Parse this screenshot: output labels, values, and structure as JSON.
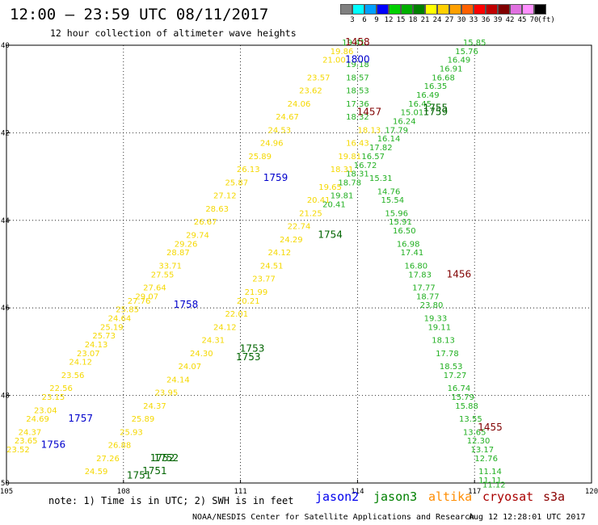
{
  "header": {
    "title": "12:00 — 23:59 UTC 08/11/2017",
    "subtitle": "12 hour collection of altimeter wave heights"
  },
  "color_scale": {
    "labels": [
      "3",
      "6",
      "9",
      "12",
      "15",
      "18",
      "21",
      "24",
      "27",
      "30",
      "33",
      "36",
      "39",
      "42",
      "45",
      "70"
    ],
    "unit": "(ft)",
    "colors": [
      "#808080",
      "#00ffff",
      "#00a0ff",
      "#0000ff",
      "#00d000",
      "#00b000",
      "#008000",
      "#ffff00",
      "#ffd000",
      "#ffa000",
      "#ff6000",
      "#ff0000",
      "#c00000",
      "#800000",
      "#e070e0",
      "#ff90ff",
      "#000000"
    ]
  },
  "axes": {
    "x_ticks": [
      "105",
      "108",
      "111",
      "114",
      "117",
      "120"
    ],
    "y_ticks": [
      "40",
      "42",
      "44",
      "46",
      "48",
      "50"
    ]
  },
  "footer": {
    "note": "note: 1) Time is in UTC; 2) SWH is in feet",
    "satellites": [
      {
        "name": "jason2",
        "color": "#0000ee"
      },
      {
        "name": "jason3",
        "color": "#008000"
      },
      {
        "name": "altika",
        "color": "#ff8c00"
      },
      {
        "name": "cryosat",
        "color": "#aa0000"
      },
      {
        "name": "s3a",
        "color": "#8b0000"
      }
    ],
    "credit": "NOAA/NESDIS Center for Satellite Applications and Research",
    "timestamp": "Aug 12 12:28:01 UTC 2017"
  },
  "map_data": {
    "x_range": [
      105,
      120
    ],
    "y_range": [
      40,
      50
    ],
    "time_labels": [
      {
        "text": "1458",
        "x": 114.0,
        "y": 40.0,
        "color": "#800000"
      },
      {
        "text": "1800",
        "x": 114.0,
        "y": 40.4,
        "color": "#0000cc"
      },
      {
        "text": "1457",
        "x": 114.3,
        "y": 41.6,
        "color": "#800000"
      },
      {
        "text": "1755",
        "x": 116.0,
        "y": 41.5,
        "color": "#006400"
      },
      {
        "text": "1759",
        "x": 116.0,
        "y": 41.6,
        "color": "#006400"
      },
      {
        "text": "1759",
        "x": 111.9,
        "y": 43.1,
        "color": "#0000cc"
      },
      {
        "text": "1754",
        "x": 113.3,
        "y": 44.4,
        "color": "#006400"
      },
      {
        "text": "1456",
        "x": 116.6,
        "y": 45.3,
        "color": "#800000"
      },
      {
        "text": "1758",
        "x": 109.6,
        "y": 46.0,
        "color": "#0000cc"
      },
      {
        "text": "1753",
        "x": 111.3,
        "y": 47.0,
        "color": "#006400"
      },
      {
        "text": "1753",
        "x": 111.2,
        "y": 47.2,
        "color": "#006400"
      },
      {
        "text": "1757",
        "x": 106.9,
        "y": 48.6,
        "color": "#0000cc"
      },
      {
        "text": "1455",
        "x": 117.4,
        "y": 48.8,
        "color": "#800000"
      },
      {
        "text": "1756",
        "x": 106.2,
        "y": 49.2,
        "color": "#0000cc"
      },
      {
        "text": "1752",
        "x": 109.0,
        "y": 49.5,
        "color": "#006400"
      },
      {
        "text": "1752",
        "x": 109.1,
        "y": 49.5,
        "color": "#006400"
      },
      {
        "text": "1751",
        "x": 108.8,
        "y": 49.8,
        "color": "#006400"
      },
      {
        "text": "1751",
        "x": 108.4,
        "y": 49.9,
        "color": "#006400"
      }
    ],
    "tracks": [
      {
        "name": "track-a",
        "color": "#f5d800",
        "points": [
          {
            "x": 113.6,
            "y": 40.2,
            "v": "19.86"
          },
          {
            "x": 113.4,
            "y": 40.4,
            "v": "21.00"
          },
          {
            "x": 113.0,
            "y": 40.8,
            "v": "23.57"
          },
          {
            "x": 112.8,
            "y": 41.1,
            "v": "23.62"
          },
          {
            "x": 112.5,
            "y": 41.4,
            "v": "24.06"
          },
          {
            "x": 112.2,
            "y": 41.7,
            "v": "24.67"
          },
          {
            "x": 112.0,
            "y": 42.0,
            "v": "24.53"
          },
          {
            "x": 111.8,
            "y": 42.3,
            "v": "24.96"
          },
          {
            "x": 111.5,
            "y": 42.6,
            "v": "25.89"
          },
          {
            "x": 111.2,
            "y": 42.9,
            "v": "26.13"
          },
          {
            "x": 110.9,
            "y": 43.2,
            "v": "25.87"
          },
          {
            "x": 110.6,
            "y": 43.5,
            "v": "27.12"
          },
          {
            "x": 110.4,
            "y": 43.8,
            "v": "28.63"
          },
          {
            "x": 110.1,
            "y": 44.1,
            "v": "26.67"
          },
          {
            "x": 109.9,
            "y": 44.4,
            "v": "29.74"
          },
          {
            "x": 109.6,
            "y": 44.6,
            "v": "29.26"
          },
          {
            "x": 109.4,
            "y": 44.8,
            "v": "28.87"
          },
          {
            "x": 109.2,
            "y": 45.1,
            "v": "33.71"
          },
          {
            "x": 109.0,
            "y": 45.3,
            "v": "27.55"
          },
          {
            "x": 108.8,
            "y": 45.6,
            "v": "27.64"
          },
          {
            "x": 108.6,
            "y": 45.8,
            "v": "29.07"
          },
          {
            "x": 108.4,
            "y": 45.9,
            "v": "27.76"
          },
          {
            "x": 108.1,
            "y": 46.1,
            "v": "25.85"
          },
          {
            "x": 107.9,
            "y": 46.3,
            "v": "24.64"
          },
          {
            "x": 107.7,
            "y": 46.5,
            "v": "25.19"
          },
          {
            "x": 107.5,
            "y": 46.7,
            "v": "25.73"
          },
          {
            "x": 107.3,
            "y": 46.9,
            "v": "24.13"
          },
          {
            "x": 107.1,
            "y": 47.1,
            "v": "23.07"
          },
          {
            "x": 106.9,
            "y": 47.3,
            "v": "24.12"
          },
          {
            "x": 106.7,
            "y": 47.6,
            "v": "23.56"
          },
          {
            "x": 106.4,
            "y": 47.9,
            "v": "22.56"
          },
          {
            "x": 106.2,
            "y": 48.1,
            "v": "23.15"
          },
          {
            "x": 106.0,
            "y": 48.4,
            "v": "23.04"
          },
          {
            "x": 105.8,
            "y": 48.6,
            "v": "24.69"
          },
          {
            "x": 105.6,
            "y": 48.9,
            "v": "24.37"
          },
          {
            "x": 105.5,
            "y": 49.1,
            "v": "23.65"
          },
          {
            "x": 105.3,
            "y": 49.3,
            "v": "23.52"
          }
        ]
      },
      {
        "name": "track-b",
        "color": "#f5d800",
        "points": [
          {
            "x": 114.3,
            "y": 42.0,
            "v": "18.13"
          },
          {
            "x": 114.0,
            "y": 42.3,
            "v": "16.43"
          },
          {
            "x": 113.8,
            "y": 42.6,
            "v": "19.81"
          },
          {
            "x": 113.6,
            "y": 42.9,
            "v": "18.31"
          },
          {
            "x": 113.3,
            "y": 43.3,
            "v": "19.65"
          },
          {
            "x": 113.0,
            "y": 43.6,
            "v": "20.41"
          },
          {
            "x": 112.8,
            "y": 43.9,
            "v": "21.25"
          },
          {
            "x": 112.5,
            "y": 44.2,
            "v": "22.74"
          },
          {
            "x": 112.3,
            "y": 44.5,
            "v": "24.29"
          },
          {
            "x": 112.0,
            "y": 44.8,
            "v": "24.12"
          },
          {
            "x": 111.8,
            "y": 45.1,
            "v": "24.51"
          },
          {
            "x": 111.6,
            "y": 45.4,
            "v": "23.77"
          },
          {
            "x": 111.4,
            "y": 45.7,
            "v": "21.99"
          },
          {
            "x": 111.2,
            "y": 45.9,
            "v": "20.21"
          },
          {
            "x": 110.9,
            "y": 46.2,
            "v": "22.01"
          },
          {
            "x": 110.6,
            "y": 46.5,
            "v": "24.12"
          },
          {
            "x": 110.3,
            "y": 46.8,
            "v": "24.31"
          },
          {
            "x": 110.0,
            "y": 47.1,
            "v": "24.30"
          },
          {
            "x": 109.7,
            "y": 47.4,
            "v": "24.07"
          },
          {
            "x": 109.4,
            "y": 47.7,
            "v": "24.14"
          },
          {
            "x": 109.1,
            "y": 48.0,
            "v": "23.95"
          },
          {
            "x": 108.8,
            "y": 48.3,
            "v": "24.37"
          },
          {
            "x": 108.5,
            "y": 48.6,
            "v": "25.89"
          },
          {
            "x": 108.2,
            "y": 48.9,
            "v": "25.93"
          },
          {
            "x": 107.9,
            "y": 49.2,
            "v": "26.88"
          },
          {
            "x": 107.6,
            "y": 49.5,
            "v": "27.26"
          },
          {
            "x": 107.3,
            "y": 49.8,
            "v": "24.59"
          }
        ]
      },
      {
        "name": "track-c",
        "color": "#22b022",
        "points": [
          {
            "x": 113.9,
            "y": 40.0,
            "v": "19.41"
          },
          {
            "x": 114.0,
            "y": 40.5,
            "v": "19.18"
          },
          {
            "x": 114.0,
            "y": 40.8,
            "v": "18.57"
          },
          {
            "x": 114.0,
            "y": 41.1,
            "v": "18.53"
          },
          {
            "x": 114.0,
            "y": 41.4,
            "v": "17.36"
          },
          {
            "x": 114.0,
            "y": 41.7,
            "v": "18.32"
          },
          {
            "x": 114.6,
            "y": 43.1,
            "v": "15.31"
          },
          {
            "x": 114.8,
            "y": 43.4,
            "v": "14.76"
          },
          {
            "x": 114.9,
            "y": 43.6,
            "v": "15.54"
          },
          {
            "x": 115.0,
            "y": 43.9,
            "v": "15.96"
          },
          {
            "x": 115.1,
            "y": 44.1,
            "v": "15.91"
          },
          {
            "x": 115.2,
            "y": 44.3,
            "v": "16.50"
          },
          {
            "x": 115.3,
            "y": 44.6,
            "v": "16.98"
          },
          {
            "x": 115.4,
            "y": 44.8,
            "v": "17.41"
          },
          {
            "x": 115.5,
            "y": 45.1,
            "v": "16.80"
          },
          {
            "x": 115.6,
            "y": 45.3,
            "v": "17.83"
          },
          {
            "x": 115.7,
            "y": 45.6,
            "v": "17.77"
          },
          {
            "x": 115.8,
            "y": 45.8,
            "v": "18.77"
          },
          {
            "x": 115.9,
            "y": 46.0,
            "v": "23.80"
          },
          {
            "x": 116.0,
            "y": 46.3,
            "v": "19.33"
          },
          {
            "x": 116.1,
            "y": 46.5,
            "v": "19.11"
          },
          {
            "x": 116.2,
            "y": 46.8,
            "v": "18.13"
          },
          {
            "x": 116.3,
            "y": 47.1,
            "v": "17.78"
          },
          {
            "x": 116.4,
            "y": 47.4,
            "v": "18.53"
          },
          {
            "x": 116.5,
            "y": 47.6,
            "v": "17.27"
          },
          {
            "x": 116.6,
            "y": 47.9,
            "v": "16.74"
          },
          {
            "x": 116.7,
            "y": 48.1,
            "v": "15.79"
          },
          {
            "x": 116.8,
            "y": 48.3,
            "v": "15.88"
          },
          {
            "x": 116.9,
            "y": 48.6,
            "v": "13.55"
          },
          {
            "x": 117.0,
            "y": 48.9,
            "v": "13.65"
          },
          {
            "x": 117.1,
            "y": 49.1,
            "v": "12.30"
          },
          {
            "x": 117.2,
            "y": 49.3,
            "v": "13.17"
          },
          {
            "x": 117.3,
            "y": 49.5,
            "v": "12.76"
          },
          {
            "x": 117.4,
            "y": 49.8,
            "v": "11.14"
          },
          {
            "x": 117.4,
            "y": 50.0,
            "v": "11.11"
          },
          {
            "x": 117.5,
            "y": 50.1,
            "v": "11.12"
          }
        ]
      },
      {
        "name": "track-d",
        "color": "#22b022",
        "points": [
          {
            "x": 117.0,
            "y": 40.0,
            "v": "15.85"
          },
          {
            "x": 116.8,
            "y": 40.2,
            "v": "15.76"
          },
          {
            "x": 116.6,
            "y": 40.4,
            "v": "16.49"
          },
          {
            "x": 116.4,
            "y": 40.6,
            "v": "16.91"
          },
          {
            "x": 116.2,
            "y": 40.8,
            "v": "16.68"
          },
          {
            "x": 116.0,
            "y": 41.0,
            "v": "16.35"
          },
          {
            "x": 115.8,
            "y": 41.2,
            "v": "16.49"
          },
          {
            "x": 115.6,
            "y": 41.4,
            "v": "16.45"
          },
          {
            "x": 115.4,
            "y": 41.6,
            "v": "15.01"
          },
          {
            "x": 115.2,
            "y": 41.8,
            "v": "16.24"
          },
          {
            "x": 115.0,
            "y": 42.0,
            "v": "17.79"
          },
          {
            "x": 114.8,
            "y": 42.2,
            "v": "16.14"
          },
          {
            "x": 114.6,
            "y": 42.4,
            "v": "17.82"
          },
          {
            "x": 114.4,
            "y": 42.6,
            "v": "16.57"
          },
          {
            "x": 114.2,
            "y": 42.8,
            "v": "16.72"
          },
          {
            "x": 114.0,
            "y": 43.0,
            "v": "18.31"
          },
          {
            "x": 113.8,
            "y": 43.2,
            "v": "18.78"
          },
          {
            "x": 113.6,
            "y": 43.5,
            "v": "19.81"
          },
          {
            "x": 113.4,
            "y": 43.7,
            "v": "20.41"
          }
        ]
      }
    ]
  }
}
